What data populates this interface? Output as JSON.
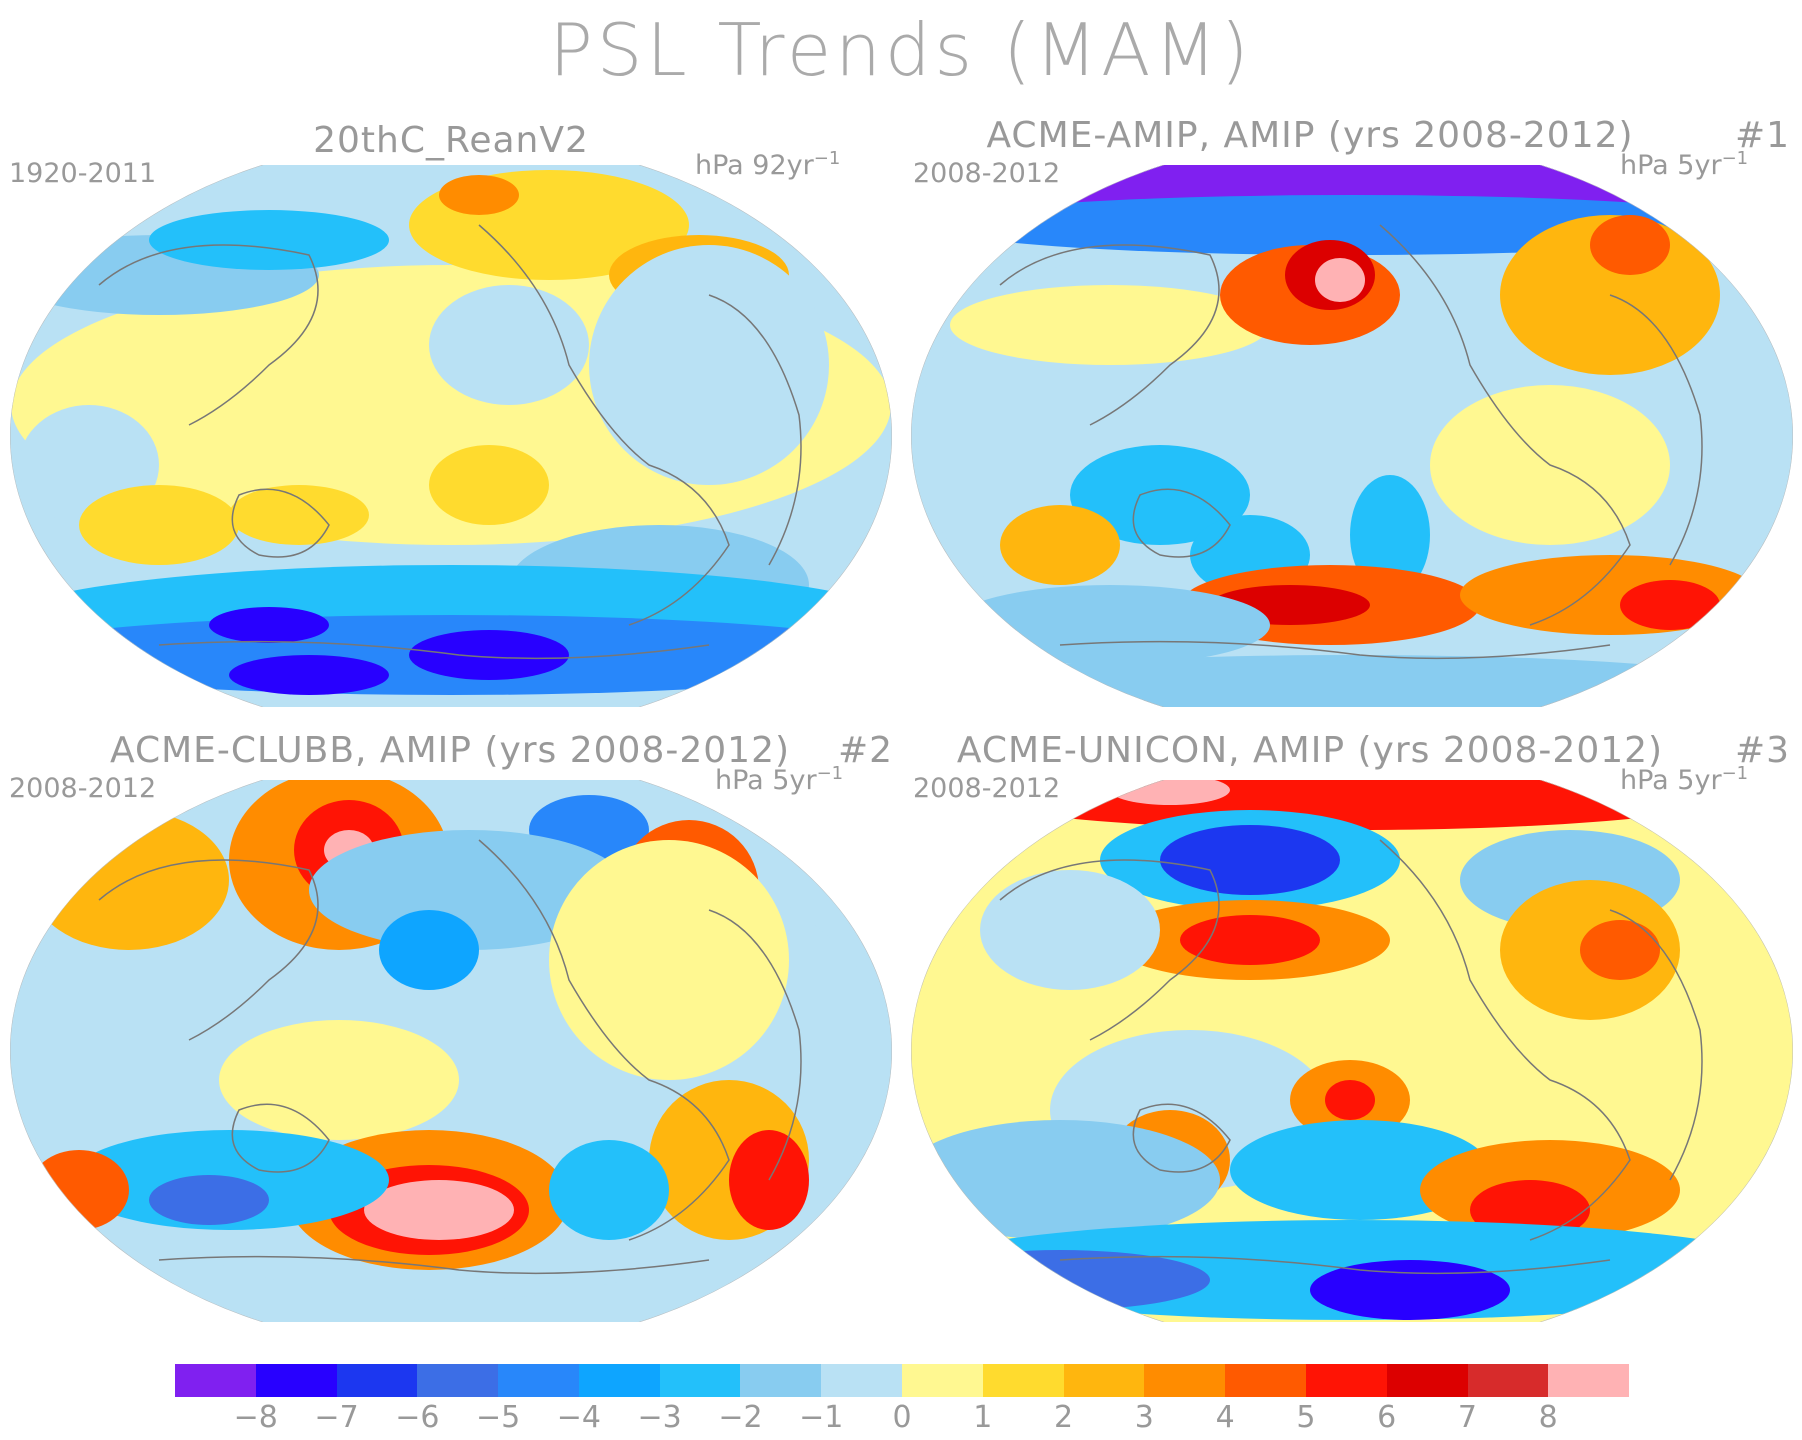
{
  "title": "PSL Trends (MAM)",
  "panels": [
    {
      "title": "20thC_ReanV2",
      "period": "1920-2011",
      "units": "hPa 92yr",
      "units_exp": "-1",
      "tag": ""
    },
    {
      "title": "ACME-AMIP, AMIP (yrs 2008-2012)",
      "period": "2008-2012",
      "units": "hPa 5yr",
      "units_exp": "-1",
      "tag": "#1"
    },
    {
      "title": "ACME-CLUBB, AMIP (yrs 2008-2012)",
      "period": "2008-2012",
      "units": "hPa 5yr",
      "units_exp": "-1",
      "tag": "#2"
    },
    {
      "title": "ACME-UNICON, AMIP (yrs 2008-2012)",
      "period": "2008-2012",
      "units": "hPa 5yr",
      "units_exp": "-1",
      "tag": "#3"
    }
  ],
  "colorbar": {
    "labels": [
      "-8",
      "-7",
      "-6",
      "-5",
      "-4",
      "-3",
      "-2",
      "-1",
      "0",
      "1",
      "2",
      "3",
      "4",
      "5",
      "6",
      "7",
      "8"
    ],
    "colors": [
      "#8020f0",
      "#2800ff",
      "#1c37f0",
      "#3c6ee6",
      "#2887fa",
      "#0ea5ff",
      "#23c0fa",
      "#88ccf0",
      "#b9e1f4",
      "#fff891",
      "#ffdb2e",
      "#ffb60e",
      "#ff8c00",
      "#ff5a00",
      "#ff1405",
      "#dc0000",
      "#d72b2b",
      "#ffb2b4"
    ]
  }
}
